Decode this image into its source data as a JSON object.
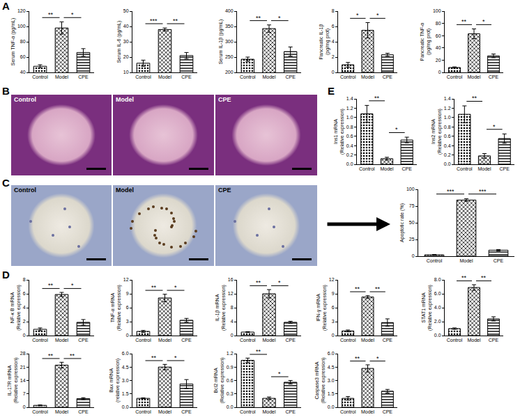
{
  "panel_labels": [
    "A",
    "B",
    "C",
    "D",
    "E"
  ],
  "images": {
    "B": [
      "Control",
      "Model",
      "CPE"
    ],
    "C": [
      "Control",
      "Model",
      "CPE"
    ]
  },
  "chart_data": [
    {
      "type": "bar",
      "y_title": "Serum TNF-α (pg/mL)",
      "categories": [
        "Control",
        "Model",
        "CPE"
      ],
      "values": [
        48,
        98,
        66
      ],
      "errors": [
        2,
        8,
        5
      ],
      "color": "#000000",
      "ylim": [
        40,
        120
      ],
      "yticks": [
        40,
        60,
        80,
        100,
        120
      ],
      "significance": [
        {
          "between": [
            "Control",
            "Model"
          ],
          "text": "**"
        },
        {
          "between": [
            "Model",
            "CPE"
          ],
          "text": "*"
        }
      ]
    },
    {
      "type": "bar",
      "y_title": "Serum IL-6 (pg/mL)",
      "categories": [
        "Control",
        "Model",
        "CPE"
      ],
      "values": [
        16,
        38,
        21
      ],
      "errors": [
        2,
        1,
        2
      ],
      "color": "#000000",
      "ylim": [
        10,
        50
      ],
      "yticks": [
        10,
        20,
        30,
        40,
        50
      ],
      "significance": [
        {
          "between": [
            "Control",
            "Model"
          ],
          "text": "***"
        },
        {
          "between": [
            "Model",
            "CPE"
          ],
          "text": "**"
        }
      ]
    },
    {
      "type": "bar",
      "y_title": "Serum IL-1β (pg/mL)",
      "categories": [
        "Control",
        "Model",
        "CPE"
      ],
      "values": [
        243,
        343,
        268
      ],
      "errors": [
        7,
        12,
        15
      ],
      "color": "#000000",
      "ylim": [
        200,
        400
      ],
      "yticks": [
        200,
        250,
        300,
        350,
        400
      ],
      "significance": [
        {
          "between": [
            "Control",
            "Model"
          ],
          "text": "**"
        },
        {
          "between": [
            "Model",
            "CPE"
          ],
          "text": "*"
        }
      ]
    },
    {
      "type": "bar",
      "y_title": "Pancreatic IL-1β\n(pg/mg prot)",
      "categories": [
        "Control",
        "Model",
        "CPE"
      ],
      "values": [
        1.0,
        5.5,
        2.3
      ],
      "errors": [
        0.3,
        1.0,
        0.2
      ],
      "color": "#000000",
      "ylim": [
        0,
        8
      ],
      "yticks": [
        0,
        2,
        4,
        6,
        8
      ],
      "significance": [
        {
          "between": [
            "Control",
            "Model"
          ],
          "text": "*"
        },
        {
          "between": [
            "Model",
            "CPE"
          ],
          "text": "*"
        }
      ]
    },
    {
      "type": "bar",
      "y_title": "Pancreatic TNF-α\n(pg/mg prot)",
      "categories": [
        "Control",
        "Model",
        "CPE"
      ],
      "values": [
        8,
        63,
        27
      ],
      "errors": [
        1,
        8,
        3
      ],
      "color": "#000000",
      "ylim": [
        0,
        100
      ],
      "yticks": [
        0,
        20,
        40,
        60,
        80,
        100
      ],
      "significance": [
        {
          "between": [
            "Control",
            "Model"
          ],
          "text": "**"
        },
        {
          "between": [
            "Model",
            "CPE"
          ],
          "text": "*"
        }
      ]
    },
    {
      "type": "bar",
      "y_title": "Ins1 mRNA\n(Relative expression)",
      "categories": [
        "Control",
        "Model",
        "CPE"
      ],
      "values": [
        1.08,
        0.12,
        0.52
      ],
      "errors": [
        0.18,
        0.03,
        0.06
      ],
      "color": "#000000",
      "ylim": [
        0,
        1.4
      ],
      "yticks": [
        {
          "value": 0,
          "label": "0.0"
        },
        0.2,
        0.4,
        0.6,
        0.8,
        {
          "value": 1,
          "label": "1.0"
        },
        1.2,
        1.4
      ],
      "significance": [
        {
          "between": [
            "Control",
            "Model"
          ],
          "text": "**"
        },
        {
          "between": [
            "Model",
            "CPE"
          ],
          "text": "*"
        }
      ]
    },
    {
      "type": "bar",
      "y_title": "Ins2 mRNA\n(Relative expression)",
      "categories": [
        "Control",
        "Model",
        "CPE"
      ],
      "values": [
        1.07,
        0.18,
        0.55
      ],
      "errors": [
        0.18,
        0.05,
        0.1
      ],
      "color": "#000000",
      "ylim": [
        0,
        1.4
      ],
      "yticks": [
        {
          "value": 0,
          "label": "0.0"
        },
        0.2,
        0.4,
        0.6,
        0.8,
        {
          "value": 1,
          "label": "1.0"
        },
        1.2,
        1.4
      ],
      "significance": [
        {
          "between": [
            "Control",
            "Model"
          ],
          "text": "**"
        },
        {
          "between": [
            "Model",
            "CPE"
          ],
          "text": "*"
        }
      ]
    },
    {
      "type": "bar",
      "y_title": "Apoptotic rate (%)",
      "categories": [
        "Control",
        "Model",
        "CPE"
      ],
      "values": [
        2,
        84,
        9
      ],
      "errors": [
        0.5,
        2,
        1
      ],
      "color": "#000000",
      "ylim": [
        0,
        100
      ],
      "yticks": [
        0,
        25,
        50,
        75,
        100
      ],
      "significance": [
        {
          "between": [
            "Control",
            "Model"
          ],
          "text": "***"
        },
        {
          "between": [
            "Model",
            "CPE"
          ],
          "text": "***"
        }
      ]
    },
    {
      "type": "bar",
      "y_title": "NF-κ B mRNA\n(Relative expression)",
      "categories": [
        "Control",
        "Model",
        "CPE"
      ],
      "values": [
        0.9,
        5.9,
        1.9
      ],
      "errors": [
        0.2,
        0.3,
        0.4
      ],
      "color": "#000000",
      "ylim": [
        0,
        8
      ],
      "yticks": [
        0,
        2,
        4,
        6,
        8
      ],
      "significance": [
        {
          "between": [
            "Control",
            "Model"
          ],
          "text": "**"
        },
        {
          "between": [
            "Model",
            "CPE"
          ],
          "text": "*"
        }
      ]
    },
    {
      "type": "bar",
      "y_title": "TNF-α mRNA\n(Relative expression)",
      "categories": [
        "Control",
        "Model",
        "CPE"
      ],
      "values": [
        0.9,
        8.1,
        3.3
      ],
      "errors": [
        0.2,
        0.8,
        0.4
      ],
      "color": "#000000",
      "ylim": [
        0,
        12
      ],
      "yticks": [
        0,
        3,
        6,
        9,
        12
      ],
      "significance": [
        {
          "between": [
            "Control",
            "Model"
          ],
          "text": "**"
        },
        {
          "between": [
            "Model",
            "CPE"
          ],
          "text": "*"
        }
      ]
    },
    {
      "type": "bar",
      "y_title": "IL-1β mRNA\n(Relative expression)",
      "categories": [
        "Control",
        "Model",
        "CPE"
      ],
      "values": [
        1.0,
        12,
        3.8
      ],
      "errors": [
        0.1,
        1.2,
        0.3
      ],
      "color": "#000000",
      "ylim": [
        0,
        16
      ],
      "yticks": [
        0,
        4,
        8,
        12,
        16
      ],
      "significance": [
        {
          "between": [
            "Control",
            "Model"
          ],
          "text": "**"
        },
        {
          "between": [
            "Model",
            "CPE"
          ],
          "text": "*"
        }
      ]
    },
    {
      "type": "bar",
      "y_title": "IFN-γ mRNA\n(Relative expression)",
      "categories": [
        "Control",
        "Model",
        "CPE"
      ],
      "values": [
        1.0,
        8.3,
        2.8
      ],
      "errors": [
        0.2,
        0.3,
        0.8
      ],
      "color": "#000000",
      "ylim": [
        0,
        12
      ],
      "yticks": [
        0,
        3,
        6,
        9,
        12
      ],
      "significance": [
        {
          "between": [
            "Control",
            "Model"
          ],
          "text": "**"
        },
        {
          "between": [
            "Model",
            "CPE"
          ],
          "text": "**"
        }
      ]
    },
    {
      "type": "bar",
      "y_title": "STAT1 mRNA\n(Relative expression)",
      "categories": [
        "Control",
        "Model",
        "CPE"
      ],
      "values": [
        1.0,
        6.9,
        2.4
      ],
      "errors": [
        0.1,
        0.4,
        0.3
      ],
      "color": "#000000",
      "ylim": [
        0,
        8
      ],
      "yticks": [
        {
          "value": 0,
          "label": "0.0"
        },
        {
          "value": 2,
          "label": "2.0"
        },
        {
          "value": 4,
          "label": "4.0"
        },
        {
          "value": 6,
          "label": "6.0"
        },
        {
          "value": 8,
          "label": "8.0"
        }
      ],
      "significance": [
        {
          "between": [
            "Control",
            "Model"
          ],
          "text": "**"
        },
        {
          "between": [
            "Model",
            "CPE"
          ],
          "text": "**"
        }
      ]
    },
    {
      "type": "bar",
      "y_title": "IL-17R mRNA\n(Relative expression)",
      "categories": [
        "Control",
        "Model",
        "CPE"
      ],
      "values": [
        1,
        22,
        4.5
      ],
      "errors": [
        0.2,
        1.5,
        0.5
      ],
      "color": "#000000",
      "ylim": [
        0,
        28
      ],
      "yticks": [
        0,
        7,
        14,
        21,
        28
      ],
      "significance": [
        {
          "between": [
            "Control",
            "Model"
          ],
          "text": "**"
        },
        {
          "between": [
            "Model",
            "CPE"
          ],
          "text": "**"
        }
      ]
    },
    {
      "type": "bar",
      "y_title": "Bax mRNA\n(relative expression)",
      "categories": [
        "Control",
        "Model",
        "CPE"
      ],
      "values": [
        1.0,
        4.5,
        2.6
      ],
      "errors": [
        0.05,
        0.3,
        0.5
      ],
      "color": "#000000",
      "ylim": [
        0,
        6
      ],
      "yticks": [
        {
          "value": 0,
          "label": "0.0"
        },
        1.5,
        {
          "value": 3,
          "label": "3.0"
        },
        4.5,
        {
          "value": 6,
          "label": "6.0"
        }
      ],
      "significance": [
        {
          "between": [
            "Control",
            "Model"
          ],
          "text": "**"
        },
        {
          "between": [
            "Model",
            "CPE"
          ],
          "text": "*"
        }
      ]
    },
    {
      "type": "bar",
      "y_title": "Bcl2 mRNA\n(Relative expression)",
      "categories": [
        "Control",
        "Model",
        "CPE"
      ],
      "values": [
        1.05,
        0.2,
        0.56
      ],
      "errors": [
        0.05,
        0.03,
        0.04
      ],
      "color": "#000000",
      "ylim": [
        0,
        1.2
      ],
      "yticks": [
        {
          "value": 0,
          "label": "0.0"
        },
        0.3,
        0.6,
        0.9,
        1.2
      ],
      "significance": [
        {
          "between": [
            "Control",
            "Model"
          ],
          "text": "**"
        },
        {
          "between": [
            "Model",
            "CPE"
          ],
          "text": "*"
        }
      ]
    },
    {
      "type": "bar",
      "y_title": "Caspase3 mRNA\n(Relative expression)",
      "categories": [
        "Control",
        "Model",
        "CPE"
      ],
      "values": [
        1.0,
        4.35,
        1.8
      ],
      "errors": [
        0.2,
        0.4,
        0.2
      ],
      "color": "#000000",
      "ylim": [
        0,
        6
      ],
      "yticks": [
        {
          "value": 0,
          "label": "0.0"
        },
        1.5,
        {
          "value": 3,
          "label": "3.0"
        },
        4.5,
        {
          "value": 6,
          "label": "6.0"
        }
      ],
      "significance": [
        {
          "between": [
            "Control",
            "Model"
          ],
          "text": "**"
        },
        {
          "between": [
            "Model",
            "CPE"
          ],
          "text": "*"
        }
      ]
    }
  ]
}
